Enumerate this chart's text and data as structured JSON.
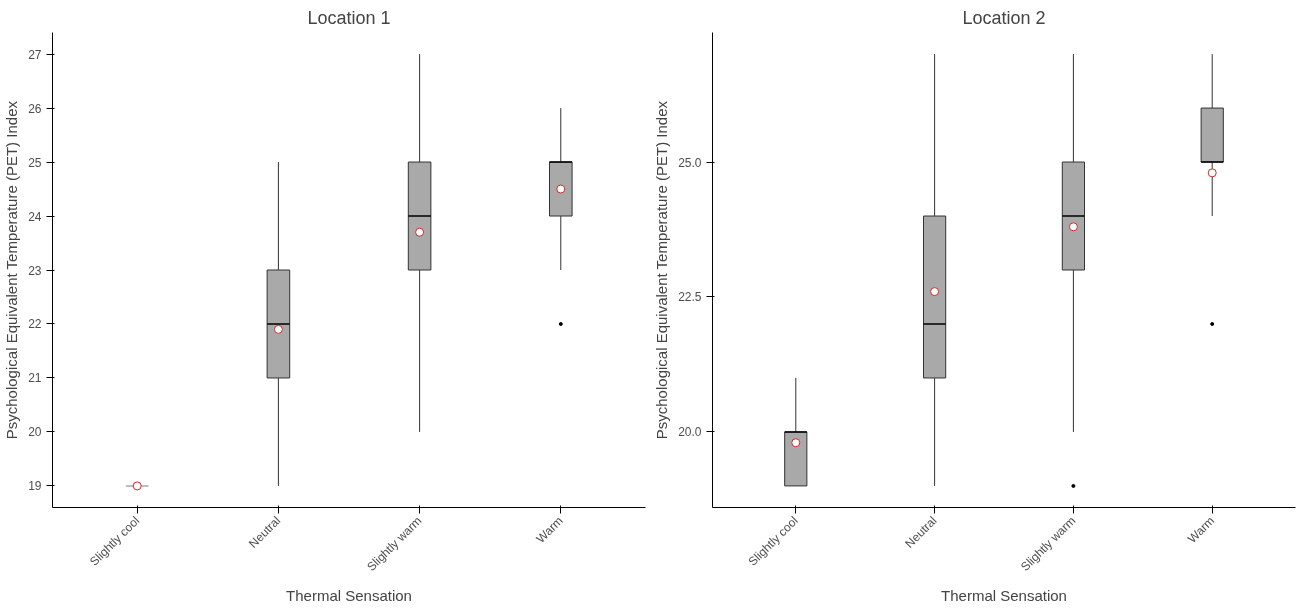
{
  "chart_data": [
    {
      "type": "box",
      "title": "Location 1",
      "xlabel": "Thermal Sensation",
      "ylabel": "Psychological Equivalent Temperature (PET) Index",
      "categories": [
        "Slightly cool",
        "Neutral",
        "Slightly warm",
        "Warm"
      ],
      "boxes": [
        {
          "low": 19,
          "q1": 19,
          "median": 19,
          "q3": 19,
          "high": 19,
          "mean": 19
        },
        {
          "low": 19,
          "q1": 21,
          "median": 22,
          "q3": 23,
          "high": 25,
          "mean": 21.9
        },
        {
          "low": 20,
          "q1": 23,
          "median": 24,
          "q3": 25,
          "high": 27,
          "mean": 23.7
        },
        {
          "low": 23,
          "q1": 24,
          "median": 25,
          "q3": 25,
          "high": 26,
          "mean": 24.5,
          "outliers": [
            22
          ]
        }
      ],
      "color": "#a9a9a9",
      "ylim": [
        18.6,
        27.4
      ],
      "yticks": [
        19,
        20,
        21,
        22,
        23,
        24,
        25,
        26,
        27
      ],
      "grid": false
    },
    {
      "type": "box",
      "title": "Location 2",
      "xlabel": "Thermal Sensation",
      "ylabel": "Psychological Equivalent Temperature (PET) Index",
      "categories": [
        "Slightly cool",
        "Neutral",
        "Slightly warm",
        "Warm"
      ],
      "boxes": [
        {
          "low": 19,
          "q1": 19,
          "median": 20,
          "q3": 20,
          "high": 21,
          "mean": 19.8
        },
        {
          "low": 19,
          "q1": 21,
          "median": 22,
          "q3": 24,
          "high": 27,
          "mean": 22.6
        },
        {
          "low": 20,
          "q1": 23,
          "median": 24,
          "q3": 25,
          "high": 27,
          "mean": 23.8,
          "outliers": [
            19
          ]
        },
        {
          "low": 24,
          "q1": 25,
          "median": 25,
          "q3": 26,
          "high": 27,
          "mean": 24.8,
          "outliers": [
            22
          ]
        }
      ],
      "color": "#a9a9a9",
      "ylim": [
        18.6,
        27.4
      ],
      "yticks": [
        {
          "value": 20,
          "label": "20.0"
        },
        {
          "value": 22.5,
          "label": "22.5"
        },
        {
          "value": 25,
          "label": "25.0"
        }
      ],
      "grid": false
    }
  ]
}
